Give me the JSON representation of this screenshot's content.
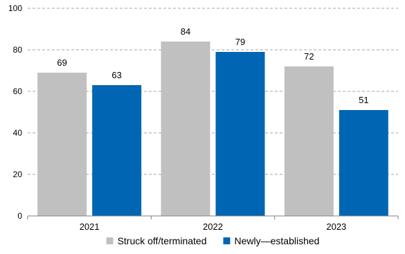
{
  "chart_data": {
    "type": "bar",
    "categories": [
      "2021",
      "2022",
      "2023"
    ],
    "series": [
      {
        "name": "Struck off/terminated",
        "values": [
          69,
          84,
          72
        ],
        "color": "#c0c0c0"
      },
      {
        "name": "Newly—established",
        "values": [
          63,
          79,
          51
        ],
        "color": "#0066b3"
      }
    ],
    "ylim": [
      0,
      100
    ],
    "yticks": [
      0,
      20,
      40,
      60,
      80,
      100
    ],
    "grid": true,
    "legend": "bottom",
    "data_labels": true
  }
}
